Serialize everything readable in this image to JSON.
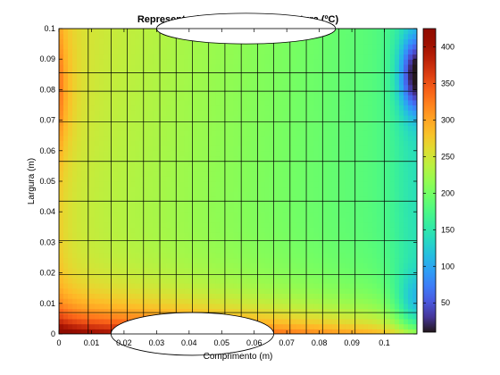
{
  "chart_data": {
    "type": "heatmap",
    "title": "Representação a cores da temperatura (ºC)",
    "xlabel": "Comprimento (m)",
    "ylabel": "Largura (m)",
    "xlim": [
      0,
      0.11
    ],
    "ylim": [
      0,
      0.1
    ],
    "x_ticks": [
      "0",
      "0.01",
      "0.02",
      "0.03",
      "0.04",
      "0.05",
      "0.06",
      "0.07",
      "0.08",
      "0.09",
      "0.1"
    ],
    "y_ticks": [
      "0",
      "0.01",
      "0.02",
      "0.03",
      "0.04",
      "0.05",
      "0.06",
      "0.07",
      "0.08",
      "0.09",
      "0.1"
    ],
    "colorbar": {
      "range": [
        10,
        425
      ],
      "ticks": [
        "50",
        "100",
        "150",
        "200",
        "250",
        "300",
        "350",
        "400"
      ],
      "colormap": "turbo"
    },
    "geometry": {
      "bottom_cutout": {
        "center_x": 0.041,
        "width": 0.05,
        "depth": 0.007
      },
      "top_cutout": {
        "center_x": 0.0575,
        "width": 0.055,
        "depth": 0.005
      }
    },
    "grid_lines_x": [
      0.0,
      0.009,
      0.016,
      0.021,
      0.026,
      0.031,
      0.036,
      0.041,
      0.046,
      0.051,
      0.056,
      0.061,
      0.066,
      0.071,
      0.076,
      0.081,
      0.086,
      0.091,
      0.1,
      0.11
    ],
    "grid_lines_y": [
      0.0,
      0.007,
      0.0195,
      0.0305,
      0.0435,
      0.0565,
      0.0695,
      0.0795,
      0.0855,
      0.1
    ],
    "temperature_field": {
      "description_points": [
        {
          "x": 0.0,
          "y": 0.0,
          "t": 425
        },
        {
          "x": 0.04,
          "y": 0.01,
          "t": 360
        },
        {
          "x": 0.0,
          "y": 0.08,
          "t": 260
        },
        {
          "x": 0.04,
          "y": 0.05,
          "t": 215
        },
        {
          "x": 0.08,
          "y": 0.05,
          "t": 175
        },
        {
          "x": 0.11,
          "y": 0.08,
          "t": 35
        },
        {
          "x": 0.11,
          "y": 0.0,
          "t": 110
        }
      ]
    }
  }
}
